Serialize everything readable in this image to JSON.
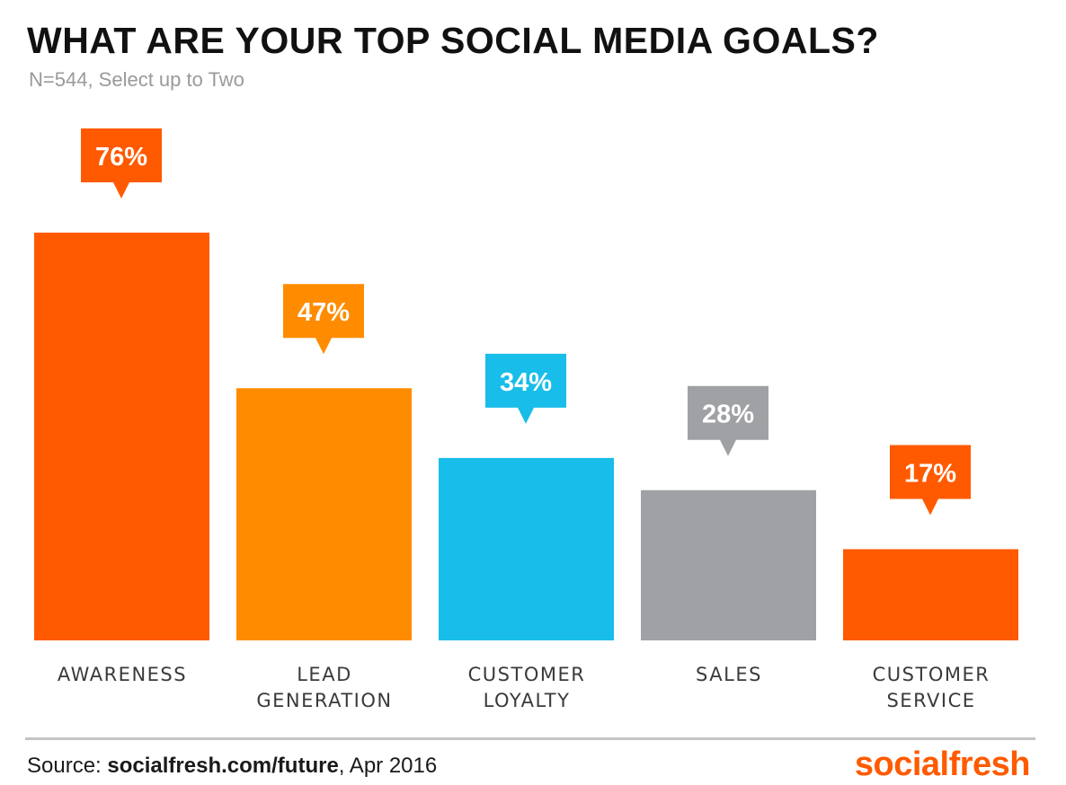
{
  "chart_data": {
    "type": "bar",
    "title": "WHAT ARE YOUR TOP SOCIAL MEDIA GOALS?",
    "subtitle": "N=544, Select up to Two",
    "categories": [
      "AWARENESS",
      "LEAD\nGENERATION",
      "CUSTOMER\nLOYALTY",
      "SALES",
      "CUSTOMER\nSERVICE"
    ],
    "values": [
      76,
      47,
      34,
      28,
      17
    ],
    "value_labels": [
      "76%",
      "47%",
      "34%",
      "28%",
      "17%"
    ],
    "colors": [
      "#ff5a00",
      "#ff8c00",
      "#19bde9",
      "#a0a1a4",
      "#ff5a00"
    ],
    "ylim": [
      0,
      76
    ],
    "grid": false,
    "legend": "none"
  },
  "footer": {
    "source_prefix": "Source: ",
    "source_link": "socialfresh.com/future",
    "source_suffix": ", Apr 2016",
    "brand": "socialfresh"
  }
}
